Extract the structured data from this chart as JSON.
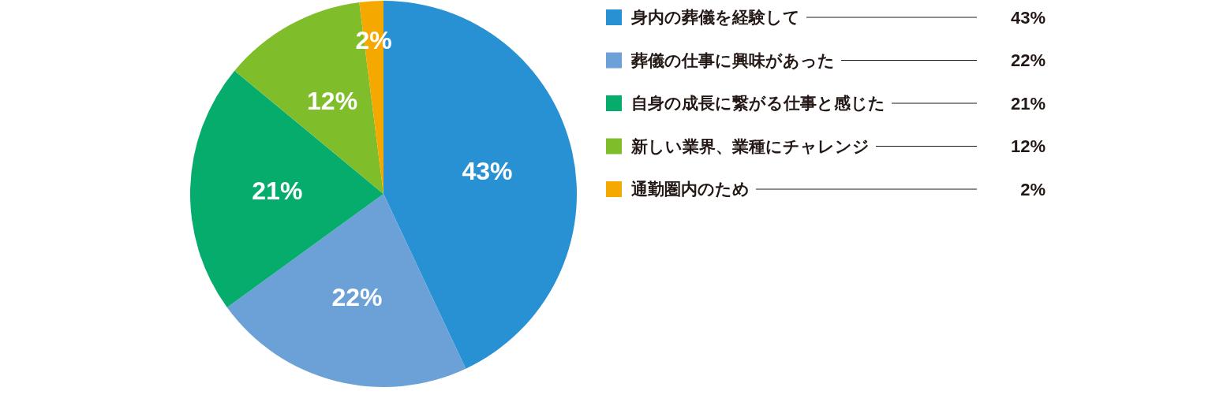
{
  "chart_data": {
    "type": "pie",
    "categories": [
      "身内の葬儀を経験して",
      "葬儀の仕事に興味があった",
      "自身の成長に繋がる仕事と感じた",
      "新しい業界、業種にチャレンジ",
      "通勤圏内のため"
    ],
    "values": [
      43,
      22,
      21,
      12,
      2
    ],
    "colors": [
      "#2891d3",
      "#6ba1d6",
      "#05ac6c",
      "#7fbd2a",
      "#f5a800"
    ],
    "value_labels": [
      "43%",
      "22%",
      "21%",
      "12%",
      "2%"
    ],
    "legend": "right"
  }
}
